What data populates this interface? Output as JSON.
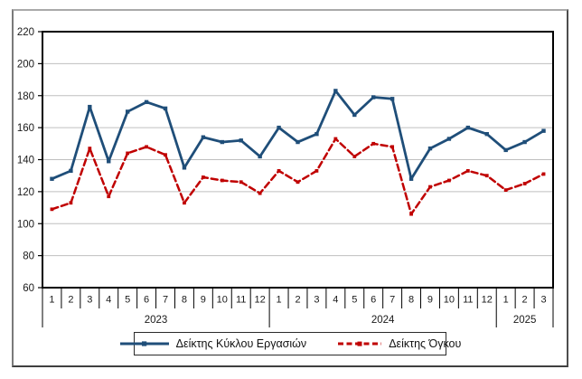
{
  "colors": {
    "background": "#ffffff",
    "grid": "#bfbfbf",
    "axis": "#000000",
    "text": "#1a1a1a",
    "turnover_series": "#1f4e79",
    "volume_series": "#c00000"
  },
  "chart_data": {
    "type": "line",
    "grid": true,
    "legend_position": "bottom",
    "y_axis": {
      "min": 60,
      "max": 220,
      "step": 20,
      "ticks": [
        60,
        80,
        100,
        120,
        140,
        160,
        180,
        200,
        220
      ]
    },
    "x_axis": {
      "groups": [
        {
          "year": "2023",
          "months": [
            "1",
            "2",
            "3",
            "4",
            "5",
            "6",
            "7",
            "8",
            "9",
            "10",
            "11",
            "12"
          ]
        },
        {
          "year": "2024",
          "months": [
            "1",
            "2",
            "3",
            "4",
            "5",
            "6",
            "7",
            "8",
            "9",
            "10",
            "11",
            "12"
          ]
        },
        {
          "year": "2025",
          "months": [
            "1",
            "2",
            "3"
          ]
        }
      ]
    },
    "series": [
      {
        "name": "Δείκτης Κύκλου Εργασιών",
        "color": "#1f4e79",
        "line_style": "solid",
        "marker": "square",
        "values": [
          128,
          133,
          173,
          139,
          170,
          176,
          172,
          135,
          154,
          151,
          152,
          142,
          160,
          151,
          156,
          183,
          168,
          179,
          178,
          128,
          147,
          153,
          160,
          156,
          146,
          151,
          158
        ]
      },
      {
        "name": "Δείκτης Όγκου",
        "color": "#c00000",
        "line_style": "dashed",
        "marker": "square",
        "values": [
          109,
          113,
          147,
          117,
          144,
          148,
          143,
          113,
          129,
          127,
          126,
          119,
          133,
          126,
          133,
          153,
          142,
          150,
          148,
          106,
          123,
          127,
          133,
          130,
          121,
          125,
          131
        ]
      }
    ]
  },
  "legend": {
    "items": [
      {
        "label": "Δείκτης Κύκλου Εργασιών"
      },
      {
        "label": "Δείκτης Όγκου"
      }
    ]
  }
}
